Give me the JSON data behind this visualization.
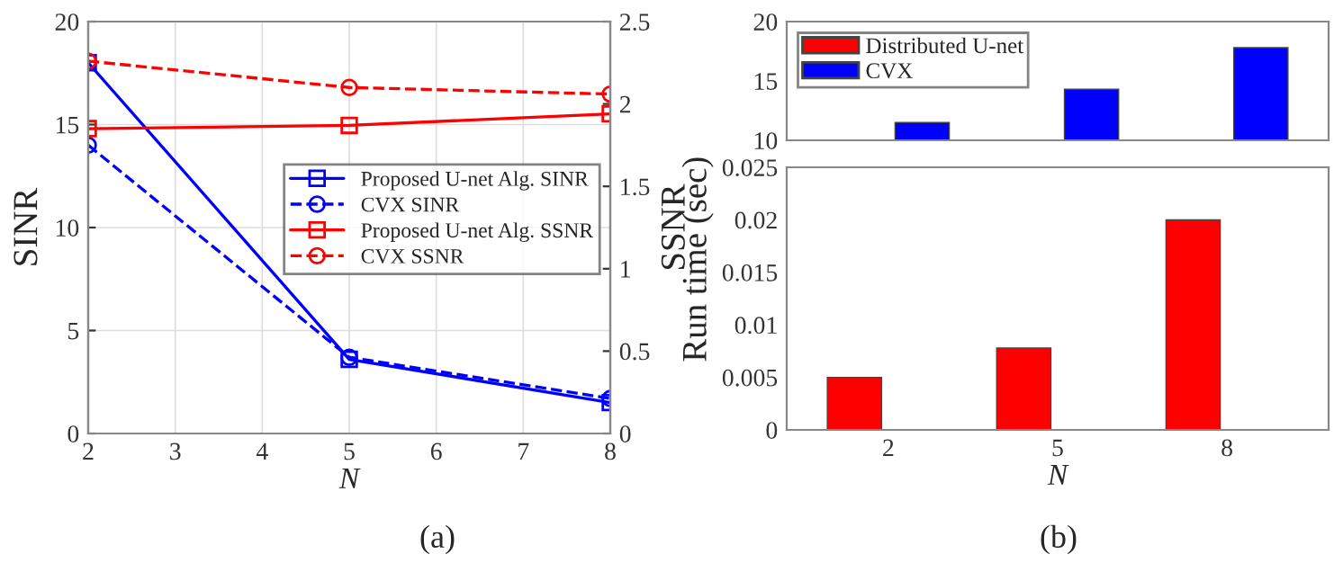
{
  "chart_data": [
    {
      "type": "line",
      "xlabel": "N",
      "ylabel": "SINR",
      "y2label": "SSNR",
      "x": [
        2,
        5,
        8
      ],
      "xlim": [
        2,
        8
      ],
      "xticks": [
        2,
        3,
        4,
        5,
        6,
        7,
        8
      ],
      "ylim": [
        0,
        20
      ],
      "yticks": [
        0,
        5,
        10,
        15,
        20
      ],
      "y2lim": [
        0,
        2.5
      ],
      "y2ticks": [
        0,
        0.5,
        1,
        1.5,
        2,
        2.5
      ],
      "grid": true,
      "legend": "right",
      "annotations": [
        "(a)"
      ],
      "series": [
        {
          "name": "Proposed U-net Alg. SINR",
          "color": "#0000ff",
          "values": [
            18,
            3.6,
            1.5
          ],
          "marker": "square",
          "line_style": "solid"
        },
        {
          "name": "CVX SINR",
          "color": "#0000ff",
          "values": [
            14,
            3.7,
            1.7
          ],
          "marker": "circle",
          "line_style": "dashed"
        },
        {
          "name": "Proposed U-net Alg. SSNR",
          "color": "#ff0000",
          "values": [
            1.85,
            1.87,
            1.94
          ],
          "marker": "square",
          "line_style": "solid",
          "axis": "y2"
        },
        {
          "name": "CVX SSNR",
          "color": "#ff0000",
          "values": [
            2.26,
            2.1,
            2.06
          ],
          "marker": "circle",
          "line_style": "dashed",
          "axis": "y2"
        }
      ]
    },
    {
      "type": "bar",
      "categories": [
        "2",
        "5",
        "8"
      ],
      "ylim": [
        10,
        20
      ],
      "yticks": [
        10,
        15,
        20
      ],
      "tick_labels": "y",
      "legend": "top left",
      "series": [
        {
          "name": "Distributed U-net",
          "color": "#ff0000",
          "values": [
            null,
            null,
            null
          ]
        },
        {
          "name": "CVX",
          "color": "#0000ff",
          "values": [
            11.5,
            14.3,
            17.8
          ]
        }
      ]
    },
    {
      "type": "bar",
      "categories": [
        "2",
        "5",
        "8"
      ],
      "xlabel": "N",
      "ylabel": "Run time (sec)",
      "ylim": [
        0,
        0.025
      ],
      "yticks": [
        0,
        0.005,
        0.01,
        0.015,
        0.02,
        0.025
      ],
      "annotations": [
        "(b)"
      ],
      "series": [
        {
          "color": "#ff0000",
          "values": [
            0.005,
            0.0078,
            0.02
          ]
        }
      ]
    }
  ]
}
